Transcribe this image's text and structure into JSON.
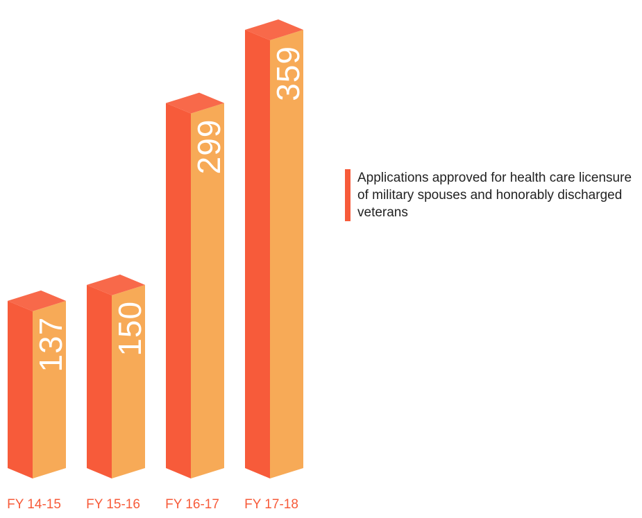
{
  "chart_data": {
    "type": "bar",
    "categories": [
      "FY 14-15",
      "FY 15-16",
      "FY 16-17",
      "FY 17-18"
    ],
    "values": [
      137,
      150,
      299,
      359
    ],
    "data_labels": [
      "137",
      "150",
      "299",
      "359"
    ],
    "series": [
      {
        "name": "Applications approved for health care licensure of military spouses and honorably discharged veterans",
        "values": [
          137,
          150,
          299,
          359
        ]
      }
    ],
    "title": "",
    "xlabel": "",
    "ylabel": "",
    "ylim": [
      0,
      359
    ],
    "grid": false,
    "legend_position": "right",
    "style": "3d-columns"
  },
  "legend": {
    "label": "Applications approved for health care licensure of military spouses and honorably discharged veterans"
  },
  "colors": {
    "bar_front": "#F7AA57",
    "bar_side": "#F75B3A",
    "bar_top": "#F8694A",
    "tick_text": "#F75B3A",
    "legend_swatch": "#F75B3A",
    "value_text": "#FFFFFF"
  }
}
